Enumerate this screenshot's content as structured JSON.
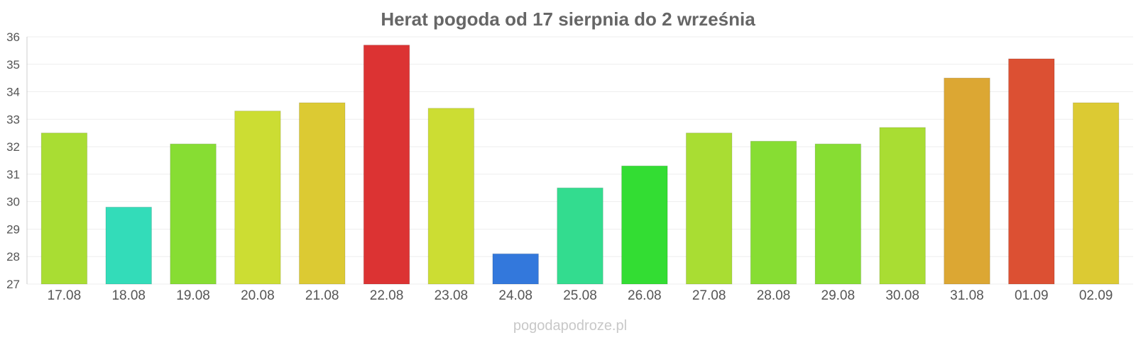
{
  "chart_data": {
    "type": "bar",
    "title": "Herat pogoda od 17 sierpnia do 2 września",
    "categories": [
      "17.08",
      "18.08",
      "19.08",
      "20.08",
      "21.08",
      "22.08",
      "23.08",
      "24.08",
      "25.08",
      "26.08",
      "27.08",
      "28.08",
      "29.08",
      "30.08",
      "31.08",
      "01.09",
      "02.09"
    ],
    "values": [
      32.5,
      29.8,
      32.1,
      33.3,
      33.6,
      35.7,
      33.4,
      28.1,
      30.5,
      31.3,
      32.5,
      32.2,
      32.1,
      32.7,
      34.5,
      35.2,
      33.6
    ],
    "colors": [
      "#a9dd33",
      "#33dcb9",
      "#87dd33",
      "#ccdd33",
      "#dcca33",
      "#dc3333",
      "#ccdd33",
      "#3378dc",
      "#33dc8f",
      "#33dd33",
      "#a9dd33",
      "#87dd33",
      "#87dd33",
      "#a9dd33",
      "#dca733",
      "#dc5033",
      "#dcca33"
    ],
    "ylim": [
      27,
      36
    ],
    "yticks": [
      27,
      28,
      29,
      30,
      31,
      32,
      33,
      34,
      35,
      36
    ],
    "xlabel": "",
    "ylabel": "",
    "grid": true
  },
  "footer": {
    "source": "pogodapodroze.pl"
  }
}
